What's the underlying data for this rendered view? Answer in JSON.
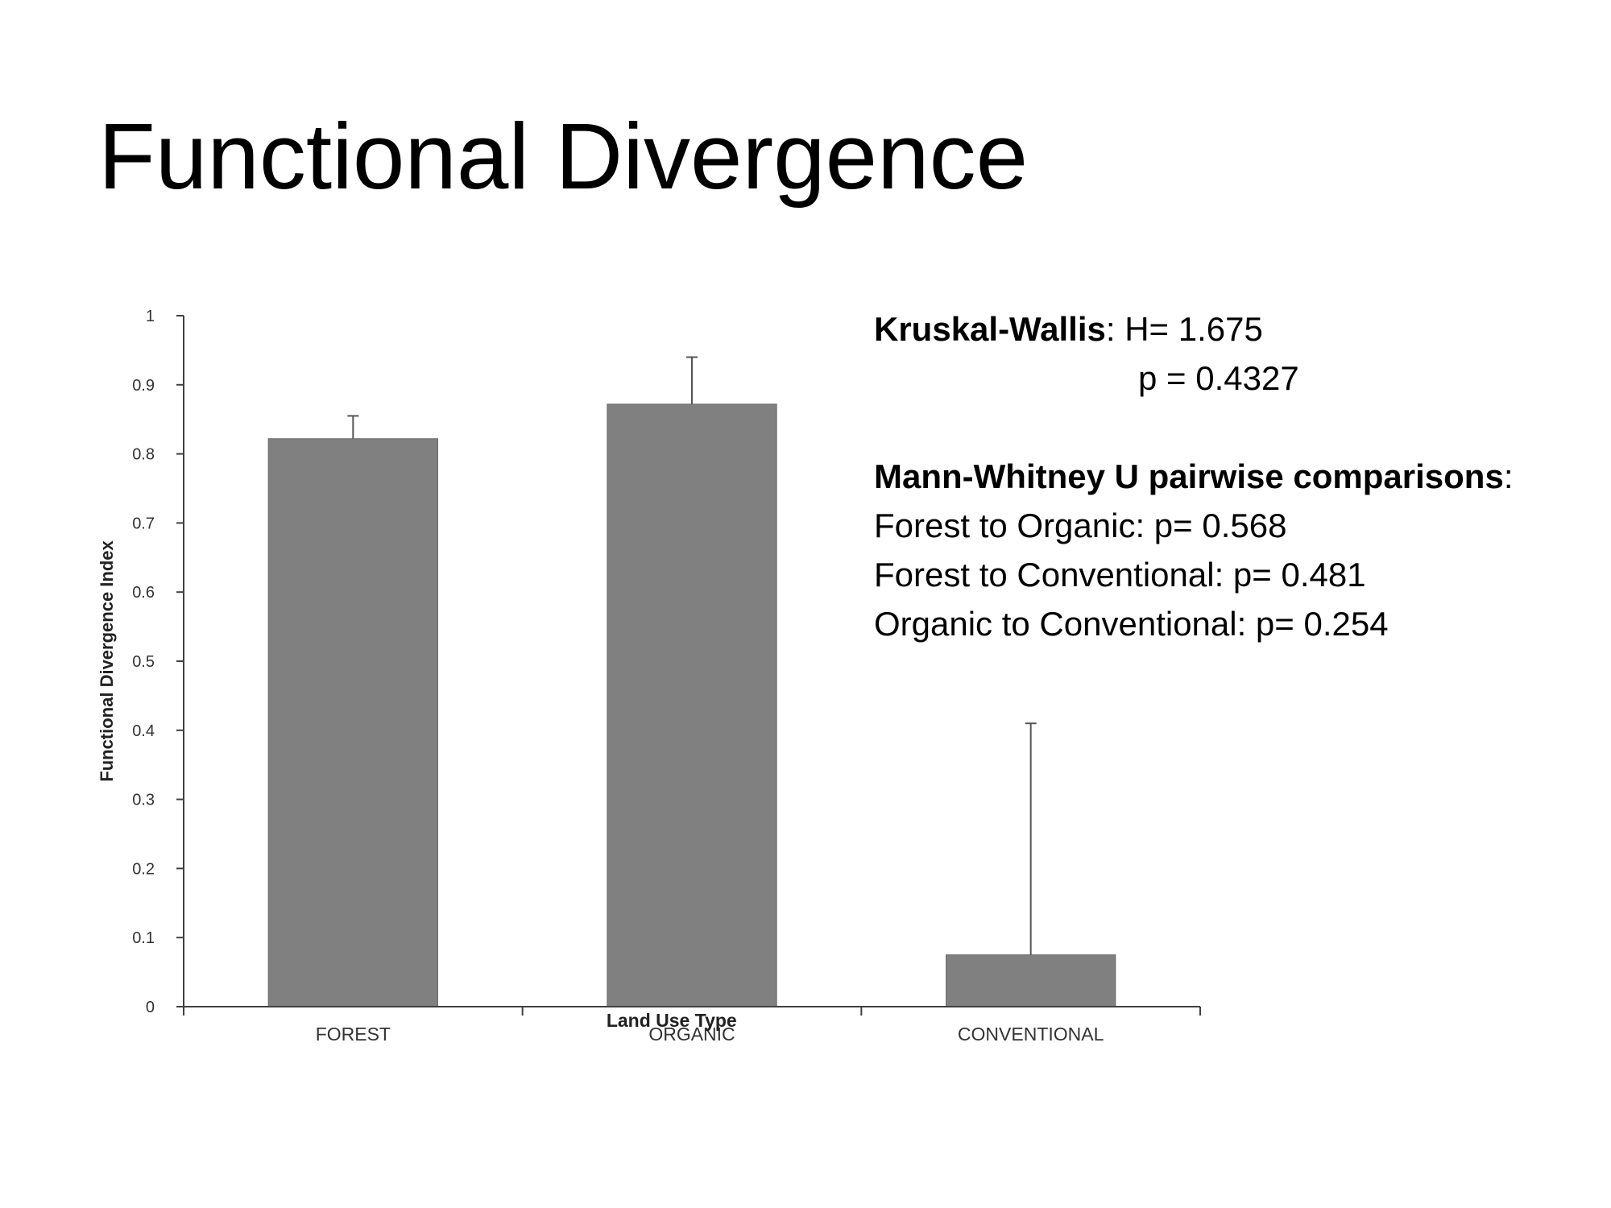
{
  "slide": {
    "title": "Functional Divergence"
  },
  "stats": {
    "kw_label": "Kruskal-Wallis",
    "kw_sep": ": ",
    "kw_h": "H= 1.675",
    "kw_p": "p = 0.4327",
    "mw_label": "Mann-Whitney U pairwise comparisons",
    "mw_sep": ":",
    "comparisons": [
      "Forest to Organic: p= 0.568",
      "Forest to Conventional: p= 0.481",
      "Organic to Conventional: p= 0.254"
    ]
  },
  "chart_data": {
    "type": "bar",
    "categories": [
      "FOREST",
      "ORGANIC",
      "CONVENTIONAL"
    ],
    "values": [
      0.822,
      0.872,
      0.075
    ],
    "error_upper": [
      0.855,
      0.94,
      0.41
    ],
    "xlabel": "Land Use Type",
    "ylabel": "Functional Divergence Index",
    "ylim": [
      0,
      1
    ],
    "yticks": [
      "0",
      "0.1",
      "0.2",
      "0.3",
      "0.4",
      "0.5",
      "0.6",
      "0.7",
      "0.8",
      "0.9",
      "1"
    ],
    "grid": false,
    "bar_color": "#808080",
    "axis_color": "#404040"
  }
}
